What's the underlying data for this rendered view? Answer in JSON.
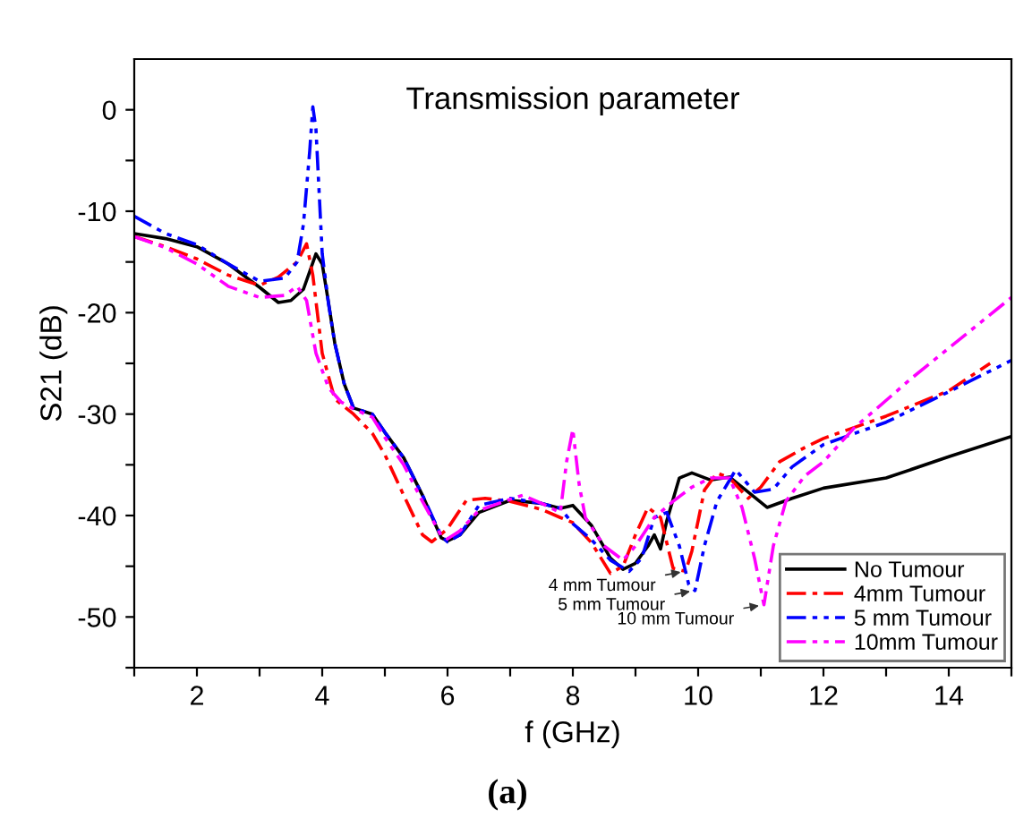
{
  "chart_data": {
    "type": "line",
    "title": "Transmission parameter",
    "xlabel": "f (GHz)",
    "ylabel": "S21 (dB)",
    "xlim": [
      1,
      15
    ],
    "ylim": [
      -55,
      5
    ],
    "xticks": [
      {
        "value": 1,
        "label": null
      },
      2,
      {
        "value": 3,
        "label": null
      },
      4,
      {
        "value": 5,
        "label": null
      },
      6,
      {
        "value": 7,
        "label": null
      },
      8,
      {
        "value": 9,
        "label": null
      },
      10,
      {
        "value": 11,
        "label": null
      },
      12,
      {
        "value": 13,
        "label": null
      },
      14,
      {
        "value": 15,
        "label": null
      }
    ],
    "yticks": [
      {
        "value": -55,
        "label": null
      },
      -50,
      {
        "value": -45,
        "label": null
      },
      -40,
      {
        "value": -35,
        "label": null
      },
      -30,
      {
        "value": -25,
        "label": null
      },
      -20,
      {
        "value": -15,
        "label": null
      },
      -10,
      {
        "value": -5,
        "label": null
      },
      0
    ],
    "grid": false,
    "legend": "bottom right",
    "series": [
      {
        "name": "No Tumour",
        "color": "#000000",
        "line_style": "solid",
        "x": [
          1,
          1.5,
          2,
          2.5,
          3,
          3.3,
          3.5,
          3.7,
          3.9,
          4.0,
          4.1,
          4.2,
          4.35,
          4.5,
          4.8,
          5.0,
          5.3,
          5.6,
          5.9,
          6.0,
          6.2,
          6.5,
          7,
          7.5,
          7.8,
          8,
          8.3,
          8.6,
          8.8,
          9.0,
          9.2,
          9.3,
          9.4,
          9.5,
          9.7,
          9.9,
          10.2,
          10.5,
          10.8,
          11.1,
          11.5,
          12,
          13,
          14,
          15
        ],
        "values": [
          -12.2,
          -12.7,
          -13.5,
          -15.2,
          -17.5,
          -19,
          -18.8,
          -17.7,
          -14.2,
          -15.2,
          -19,
          -23,
          -27,
          -29.4,
          -30,
          -31.8,
          -34.3,
          -38,
          -42.2,
          -42.5,
          -41.9,
          -39.7,
          -38.5,
          -38.8,
          -39.3,
          -39,
          -41,
          -44.2,
          -45.3,
          -44.7,
          -43,
          -41.9,
          -43.3,
          -40.5,
          -36.3,
          -35.8,
          -36.5,
          -36.2,
          -37.7,
          -39.2,
          -38.3,
          -37.3,
          -36.3,
          -34.2,
          -32.2
        ]
      },
      {
        "name": "4mm Tumour",
        "color": "#ff0000",
        "line_style": "dashdot",
        "x": [
          1,
          1.5,
          2,
          2.5,
          3,
          3.3,
          3.6,
          3.75,
          3.85,
          4.0,
          4.2,
          4.5,
          4.8,
          5.0,
          5.3,
          5.6,
          5.75,
          6.0,
          6.3,
          6.6,
          7,
          7.5,
          7.8,
          8,
          8.3,
          8.6,
          8.8,
          9.0,
          9.2,
          9.4,
          9.6,
          9.8,
          9.9,
          10.1,
          10.3,
          10.5,
          10.8,
          11.0,
          11.3,
          11.7,
          12,
          13,
          14,
          14.66
        ],
        "values": [
          -12.5,
          -13.5,
          -14.7,
          -16.3,
          -17.3,
          -16.5,
          -15,
          -13.2,
          -16.3,
          -24,
          -28.5,
          -30,
          -31.9,
          -34,
          -38,
          -41.9,
          -42.6,
          -41.3,
          -38.5,
          -38.3,
          -38.6,
          -39.4,
          -40.2,
          -40.7,
          -42.7,
          -45.7,
          -45,
          -41.9,
          -39.2,
          -40.2,
          -45.2,
          -45.5,
          -43.5,
          -37.5,
          -35.8,
          -36.3,
          -38.3,
          -37.2,
          -34.7,
          -33.3,
          -32.4,
          -30.2,
          -27.7,
          -25
        ]
      },
      {
        "name": "5 mm Tumour",
        "color": "#0000ff",
        "line_style": "dashdotdot",
        "x": [
          1,
          1.5,
          2,
          2.5,
          3,
          3.4,
          3.6,
          3.7,
          3.8,
          3.85,
          3.9,
          4.0,
          4.1,
          4.2,
          4.35,
          4.5,
          4.8,
          5.0,
          5.3,
          5.6,
          5.9,
          6.0,
          6.2,
          6.5,
          7,
          7.5,
          7.8,
          8.0,
          8.3,
          8.6,
          8.9,
          9.1,
          9.3,
          9.5,
          9.7,
          9.85,
          9.95,
          10.1,
          10.3,
          10.6,
          10.9,
          11.2,
          11.5,
          12,
          13,
          14,
          15
        ],
        "values": [
          -10.5,
          -12.2,
          -13.3,
          -15.2,
          -16.9,
          -16.6,
          -15,
          -11.3,
          -4.1,
          0.3,
          -1.9,
          -14.2,
          -19.1,
          -23,
          -27,
          -29.4,
          -30,
          -31.8,
          -34.3,
          -38,
          -42,
          -42.6,
          -41.9,
          -39,
          -38.3,
          -38.8,
          -39.3,
          -40.8,
          -42.4,
          -44.4,
          -45.5,
          -44.2,
          -40.2,
          -39.7,
          -43,
          -46.8,
          -47.4,
          -43,
          -38.6,
          -35.5,
          -37.7,
          -37.4,
          -35.2,
          -33,
          -30.8,
          -27.8,
          -24.7
        ]
      },
      {
        "name": "10mm Tumour",
        "color": "#ff00ff",
        "line_style": "dashdotdot",
        "x": [
          1,
          1.5,
          2,
          2.5,
          3,
          3.4,
          3.6,
          3.75,
          3.9,
          4.1,
          4.3,
          4.5,
          4.8,
          5.0,
          5.3,
          5.6,
          5.9,
          6.0,
          6.2,
          6.5,
          7,
          7.2,
          7.5,
          7.8,
          7.9,
          8.0,
          8.1,
          8.2,
          8.5,
          8.8,
          9.0,
          9.3,
          9.6,
          9.9,
          10.2,
          10.5,
          10.7,
          10.9,
          11.05,
          11.2,
          11.4,
          11.7,
          12,
          12.5,
          12.86,
          13.4,
          15
        ],
        "values": [
          -12.5,
          -13.6,
          -15.2,
          -17.4,
          -18.5,
          -18.3,
          -17.4,
          -18.8,
          -24,
          -27.4,
          -28.8,
          -29.5,
          -30.3,
          -32.3,
          -35,
          -38.6,
          -42,
          -42.3,
          -41.5,
          -39.5,
          -38.4,
          -38,
          -38.8,
          -39.7,
          -34.7,
          -31.5,
          -36.9,
          -40.2,
          -43,
          -44.4,
          -43,
          -40.2,
          -38.6,
          -37.2,
          -36.3,
          -36.3,
          -39.2,
          -44.2,
          -48.8,
          -43,
          -38.6,
          -36.1,
          -34.7,
          -31.3,
          -29.4,
          -26.5,
          -18.5
        ]
      }
    ],
    "annotations": [
      {
        "text": "4 mm Tumour",
        "x": 9.8,
        "y": -45.5
      },
      {
        "text": "5 mm Tumour",
        "x": 9.95,
        "y": -47.4
      },
      {
        "text": "10 mm Tumour",
        "x": 11.05,
        "y": -48.8
      },
      "(a)"
    ]
  }
}
